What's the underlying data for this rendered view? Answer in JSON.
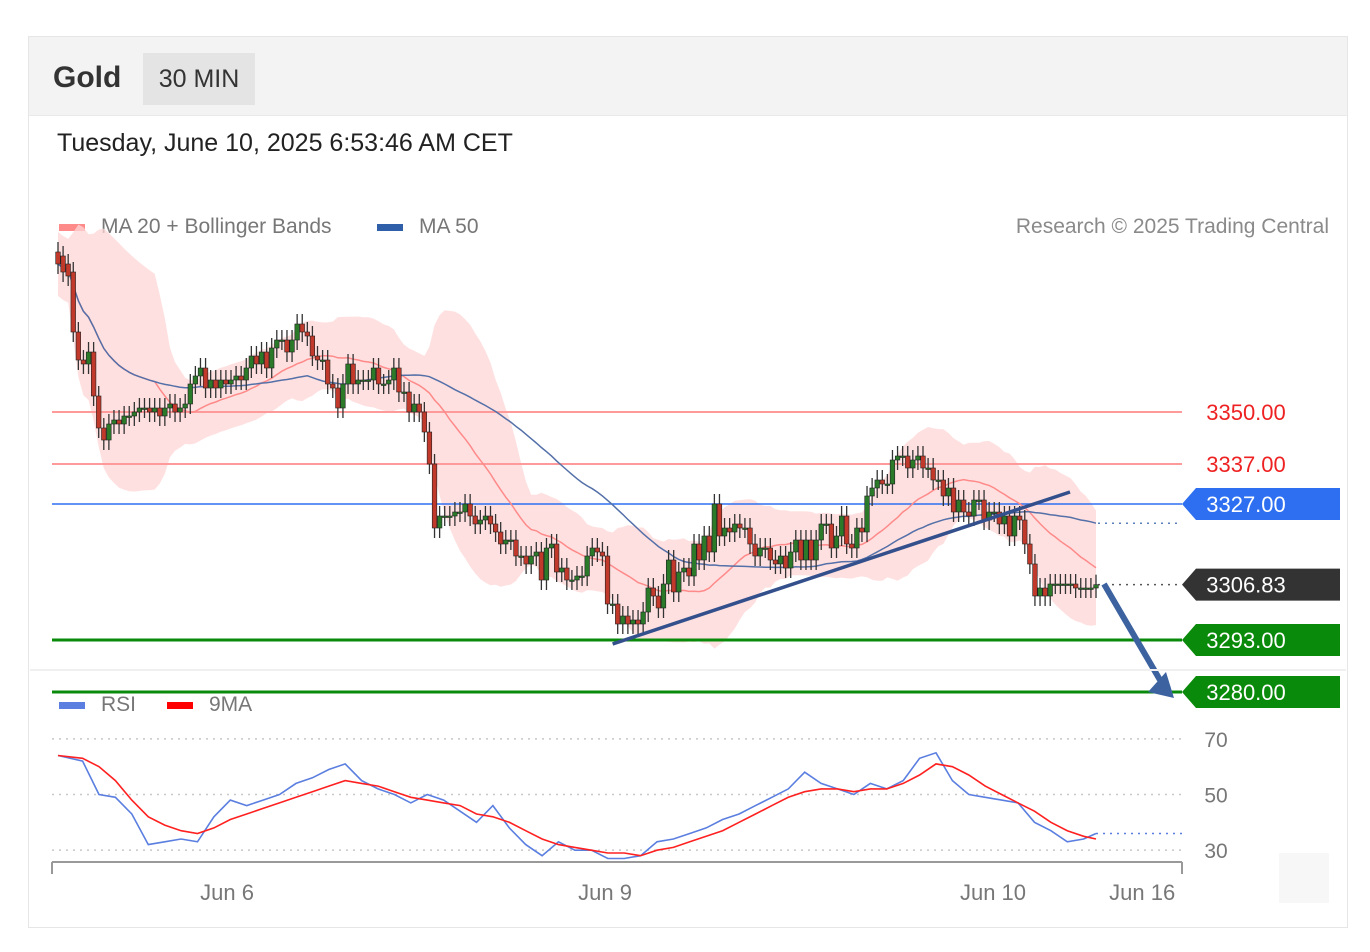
{
  "header": {
    "symbol": "Gold",
    "timeframe": "30 MIN"
  },
  "datetime": "Tuesday, June 10, 2025 6:53:46 AM CET",
  "legend": {
    "items": [
      {
        "label": "MA 20 + Bollinger Bands",
        "color": "#ff8a8a"
      },
      {
        "label": "MA 50",
        "color": "#2f5fa8"
      }
    ],
    "credit": "Research © 2025 Trading Central"
  },
  "rsi_legend": {
    "items": [
      {
        "label": "RSI",
        "color": "#5b7fe0"
      },
      {
        "label": "9MA",
        "color": "#ff0000"
      }
    ]
  },
  "chart_data": [
    {
      "type": "candlestick",
      "instrument": "Gold",
      "interval": "30 MIN",
      "x_ticks": [
        {
          "label": "Jun 6",
          "index": 34
        },
        {
          "label": "Jun 9",
          "index": 110
        },
        {
          "label": "Jun 10",
          "index": 188
        },
        {
          "label": "Jun 16",
          "index": 218
        }
      ],
      "x_range": [
        0,
        226
      ],
      "ylim": [
        3274,
        3394
      ],
      "levels": [
        {
          "price": 3350.0,
          "label": "3350.00",
          "kind": "resistance",
          "color": "#ff9a9a",
          "text_color": "#ee2222"
        },
        {
          "price": 3337.0,
          "label": "3337.00",
          "kind": "resistance",
          "color": "#ff9a9a",
          "text_color": "#ee2222"
        },
        {
          "price": 3327.0,
          "label": "3327.00",
          "kind": "pivot",
          "color": "#2d6ff0",
          "text_color": "#ffffff"
        },
        {
          "price": 3306.83,
          "label": "3306.83",
          "kind": "last",
          "color": "#333333",
          "text_color": "#ffffff"
        },
        {
          "price": 3293.0,
          "label": "3293.00",
          "kind": "support",
          "color": "#0a8a0a",
          "text_color": "#ffffff"
        },
        {
          "price": 3280.0,
          "label": "3280.00",
          "kind": "support",
          "color": "#0a8a0a",
          "text_color": "#ffffff"
        }
      ],
      "close": [
        3387,
        3385,
        3384,
        3370,
        3363,
        3362,
        3365,
        3354,
        3346,
        3343,
        3347,
        3348,
        3347,
        3349,
        3349,
        3350,
        3351,
        3351,
        3350,
        3351,
        3349,
        3351,
        3352,
        3350,
        3351,
        3352,
        3357,
        3359,
        3361,
        3356,
        3358,
        3356,
        3358,
        3357,
        3358,
        3359,
        3358,
        3361,
        3364,
        3362,
        3365,
        3361,
        3366,
        3368,
        3368,
        3365,
        3368,
        3372,
        3370,
        3369,
        3364,
        3363,
        3363,
        3357,
        3356,
        3351,
        3357,
        3362,
        3357,
        3358,
        3358,
        3358,
        3361,
        3357,
        3357,
        3358,
        3361,
        3355,
        3355,
        3350,
        3352,
        3350,
        3345,
        3337,
        3321,
        3324,
        3324,
        3324,
        3325,
        3325,
        3327,
        3324,
        3322,
        3323,
        3324,
        3322,
        3320,
        3317,
        3318,
        3318,
        3314,
        3314,
        3312,
        3314,
        3315,
        3308,
        3316,
        3317,
        3310,
        3311,
        3308,
        3308,
        3309,
        3309,
        3314,
        3316,
        3315,
        3314,
        3302,
        3302,
        3297,
        3299,
        3297,
        3298,
        3297,
        3300,
        3306,
        3304,
        3301,
        3307,
        3313,
        3305,
        3310,
        3311,
        3309,
        3317,
        3313,
        3319,
        3315,
        3327,
        3319,
        3321,
        3320,
        3322,
        3321,
        3321,
        3317,
        3314,
        3316,
        3316,
        3313,
        3312,
        3314,
        3311,
        3315,
        3318,
        3313,
        3318,
        3313,
        3318,
        3322,
        3322,
        3316,
        3319,
        3324,
        3317,
        3316,
        3321,
        3320,
        3329,
        3331,
        3333,
        3332,
        3332,
        3338,
        3339,
        3339,
        3336,
        3338,
        3339,
        3336,
        3336,
        3333,
        3333,
        3329,
        3331,
        3325,
        3328,
        3325,
        3324,
        3328,
        3328,
        3323,
        3325,
        3325,
        3322,
        3324,
        3319,
        3324,
        3323,
        3317,
        3312,
        3304,
        3306,
        3304,
        3307,
        3307,
        3307,
        3307,
        3307,
        3306,
        3306,
        3306,
        3306,
        3306.83
      ],
      "open": [
        3390,
        3389,
        3387,
        3385,
        3370,
        3363,
        3362,
        3365,
        3354,
        3346,
        3343,
        3347,
        3348,
        3347,
        3349,
        3349,
        3350,
        3351,
        3351,
        3350,
        3351,
        3349,
        3351,
        3352,
        3350,
        3351,
        3352,
        3357,
        3359,
        3361,
        3356,
        3358,
        3356,
        3358,
        3357,
        3358,
        3359,
        3358,
        3361,
        3364,
        3362,
        3365,
        3361,
        3366,
        3368,
        3368,
        3365,
        3368,
        3372,
        3370,
        3369,
        3364,
        3363,
        3363,
        3357,
        3356,
        3351,
        3357,
        3362,
        3357,
        3358,
        3358,
        3358,
        3361,
        3357,
        3357,
        3358,
        3361,
        3355,
        3355,
        3350,
        3352,
        3350,
        3345,
        3337,
        3321,
        3324,
        3324,
        3324,
        3325,
        3325,
        3327,
        3324,
        3322,
        3323,
        3324,
        3322,
        3320,
        3317,
        3318,
        3318,
        3314,
        3314,
        3312,
        3314,
        3315,
        3308,
        3316,
        3317,
        3310,
        3311,
        3308,
        3308,
        3309,
        3309,
        3314,
        3316,
        3315,
        3314,
        3302,
        3302,
        3297,
        3299,
        3297,
        3298,
        3297,
        3300,
        3306,
        3304,
        3301,
        3307,
        3313,
        3305,
        3310,
        3311,
        3309,
        3317,
        3313,
        3319,
        3315,
        3327,
        3319,
        3321,
        3320,
        3322,
        3321,
        3321,
        3317,
        3314,
        3316,
        3316,
        3313,
        3312,
        3314,
        3311,
        3315,
        3318,
        3313,
        3318,
        3313,
        3318,
        3322,
        3322,
        3316,
        3319,
        3324,
        3317,
        3316,
        3321,
        3320,
        3329,
        3331,
        3333,
        3332,
        3332,
        3338,
        3339,
        3339,
        3336,
        3338,
        3339,
        3336,
        3336,
        3333,
        3333,
        3329,
        3331,
        3325,
        3328,
        3325,
        3324,
        3328,
        3328,
        3323,
        3325,
        3325,
        3322,
        3324,
        3319,
        3324,
        3323,
        3317,
        3312,
        3304,
        3306,
        3304,
        3307,
        3307,
        3307,
        3307,
        3307,
        3306,
        3306,
        3306,
        3306
      ]
    },
    {
      "type": "line",
      "title": "",
      "series": [
        {
          "name": "RSI"
        },
        {
          "name": "9MA"
        }
      ],
      "ylim": [
        20,
        80
      ],
      "y_ticks": [
        70,
        50,
        30
      ],
      "rsi_points": [
        [
          0,
          64
        ],
        [
          6,
          62
        ],
        [
          10,
          50
        ],
        [
          14,
          49
        ],
        [
          18,
          43
        ],
        [
          22,
          32
        ],
        [
          26,
          33
        ],
        [
          30,
          34
        ],
        [
          34,
          33
        ],
        [
          38,
          42
        ],
        [
          42,
          48
        ],
        [
          46,
          46
        ],
        [
          50,
          48
        ],
        [
          54,
          50
        ],
        [
          58,
          54
        ],
        [
          62,
          56
        ],
        [
          66,
          59
        ],
        [
          70,
          61
        ],
        [
          74,
          55
        ],
        [
          78,
          52
        ],
        [
          82,
          50
        ],
        [
          86,
          47
        ],
        [
          90,
          50
        ],
        [
          94,
          48
        ],
        [
          98,
          44
        ],
        [
          102,
          40
        ],
        [
          106,
          46
        ],
        [
          110,
          38
        ],
        [
          114,
          32
        ],
        [
          118,
          28
        ],
        [
          122,
          33
        ],
        [
          126,
          30
        ],
        [
          130,
          30
        ],
        [
          134,
          27
        ],
        [
          138,
          27
        ],
        [
          142,
          28
        ],
        [
          146,
          33
        ],
        [
          150,
          34
        ],
        [
          154,
          36
        ],
        [
          158,
          38
        ],
        [
          162,
          41
        ],
        [
          166,
          43
        ],
        [
          170,
          46
        ],
        [
          174,
          49
        ],
        [
          178,
          52
        ],
        [
          182,
          58
        ],
        [
          186,
          54
        ],
        [
          190,
          52
        ],
        [
          194,
          50
        ],
        [
          198,
          54
        ],
        [
          202,
          52
        ],
        [
          206,
          55
        ],
        [
          210,
          63
        ],
        [
          214,
          65
        ],
        [
          218,
          55
        ],
        [
          222,
          50
        ],
        [
          226,
          49
        ],
        [
          230,
          48
        ],
        [
          234,
          47
        ],
        [
          238,
          40
        ],
        [
          242,
          37
        ],
        [
          246,
          33
        ],
        [
          250,
          34
        ],
        [
          253,
          36
        ]
      ],
      "ma9_points": [
        [
          0,
          64
        ],
        [
          6,
          63
        ],
        [
          10,
          60
        ],
        [
          14,
          55
        ],
        [
          18,
          48
        ],
        [
          22,
          42
        ],
        [
          26,
          39
        ],
        [
          30,
          37
        ],
        [
          34,
          36
        ],
        [
          38,
          38
        ],
        [
          42,
          41
        ],
        [
          46,
          43
        ],
        [
          50,
          45
        ],
        [
          54,
          47
        ],
        [
          58,
          49
        ],
        [
          62,
          51
        ],
        [
          66,
          53
        ],
        [
          70,
          55
        ],
        [
          74,
          54
        ],
        [
          78,
          53
        ],
        [
          82,
          51
        ],
        [
          86,
          49
        ],
        [
          90,
          48
        ],
        [
          94,
          47
        ],
        [
          98,
          46
        ],
        [
          102,
          43
        ],
        [
          106,
          42
        ],
        [
          110,
          40
        ],
        [
          114,
          37
        ],
        [
          118,
          34
        ],
        [
          122,
          32
        ],
        [
          126,
          31
        ],
        [
          130,
          30
        ],
        [
          134,
          29
        ],
        [
          138,
          29
        ],
        [
          142,
          28
        ],
        [
          146,
          30
        ],
        [
          150,
          31
        ],
        [
          154,
          33
        ],
        [
          158,
          35
        ],
        [
          162,
          37
        ],
        [
          166,
          40
        ],
        [
          170,
          43
        ],
        [
          174,
          46
        ],
        [
          178,
          49
        ],
        [
          182,
          51
        ],
        [
          186,
          52
        ],
        [
          190,
          52
        ],
        [
          194,
          51
        ],
        [
          198,
          52
        ],
        [
          202,
          52
        ],
        [
          206,
          54
        ],
        [
          210,
          57
        ],
        [
          214,
          61
        ],
        [
          218,
          60
        ],
        [
          222,
          57
        ],
        [
          226,
          53
        ],
        [
          230,
          50
        ],
        [
          234,
          47
        ],
        [
          238,
          44
        ],
        [
          242,
          40
        ],
        [
          246,
          37
        ],
        [
          250,
          35
        ],
        [
          253,
          34
        ]
      ]
    }
  ],
  "rsi_labels": {
    "70": "70",
    "50": "50",
    "30": "30"
  }
}
